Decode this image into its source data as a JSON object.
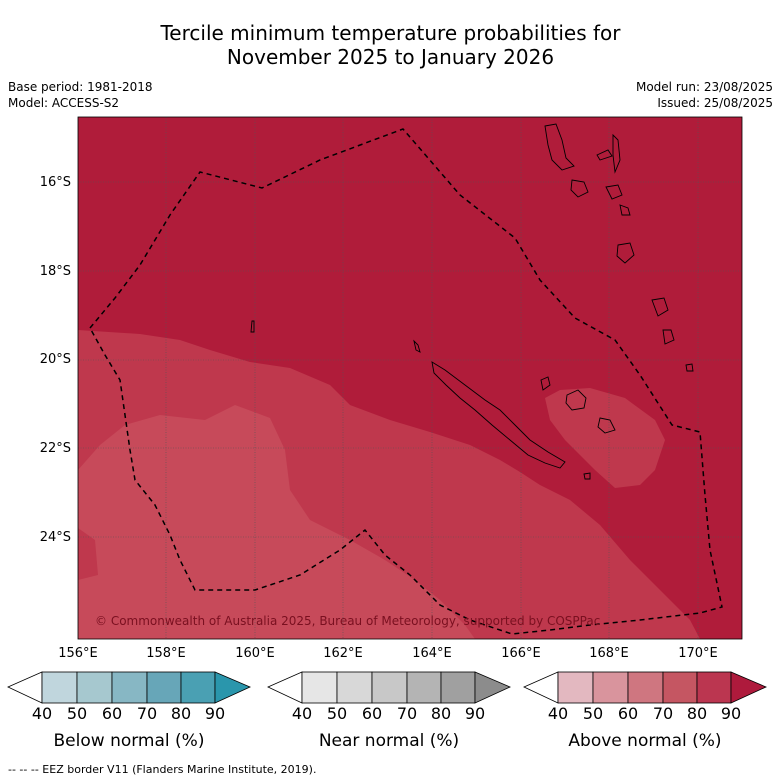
{
  "title": {
    "line1": "Tercile minimum temperature probabilities for",
    "line2": "November 2025 to January 2026"
  },
  "meta": {
    "base_period": "Base period: 1981-2018",
    "model": "Model: ACCESS-S2",
    "model_run": "Model run: 23/08/2025",
    "issued": "Issued: 25/08/2025"
  },
  "map": {
    "latitude_labels": [
      "16°S",
      "18°S",
      "20°S",
      "22°S",
      "24°S"
    ],
    "longitude_labels": [
      "156°E",
      "158°E",
      "160°E",
      "162°E",
      "164°E",
      "166°E",
      "168°E",
      "170°E"
    ],
    "copyright": "© Commonwealth of Australia 2025, Bureau of Meteorology, supported by COSPPac",
    "colors": {
      "above_80": "#b01c3a",
      "above_70": "#bf384d",
      "above_60": "#c74a5a",
      "land_outline": "#000000",
      "eez_border": "#000000",
      "gridline": "#555555"
    }
  },
  "colorbars": [
    {
      "label": "Below normal (%)",
      "ticks": [
        "40",
        "50",
        "60",
        "70",
        "80",
        "90"
      ],
      "colors": [
        "#ffffff",
        "#c0d6dd",
        "#a6c8cf",
        "#87b7c4",
        "#67a6b8",
        "#4aa0b3",
        "#2a96ac"
      ]
    },
    {
      "label": "Near normal (%)",
      "ticks": [
        "40",
        "50",
        "60",
        "70",
        "80",
        "90"
      ],
      "colors": [
        "#ffffff",
        "#e6e6e6",
        "#d8d8d8",
        "#c8c8c8",
        "#b4b4b4",
        "#a0a0a0",
        "#8c8c8c"
      ]
    },
    {
      "label": "Above normal (%)",
      "ticks": [
        "40",
        "50",
        "60",
        "70",
        "80",
        "90"
      ],
      "colors": [
        "#ffffff",
        "#e3b8c0",
        "#d9949d",
        "#cf7680",
        "#c55662",
        "#bb3650",
        "#ae1a3c"
      ]
    }
  ],
  "footer": "--  --  -- EEZ border V11 (Flanders Marine Institute, 2019)."
}
